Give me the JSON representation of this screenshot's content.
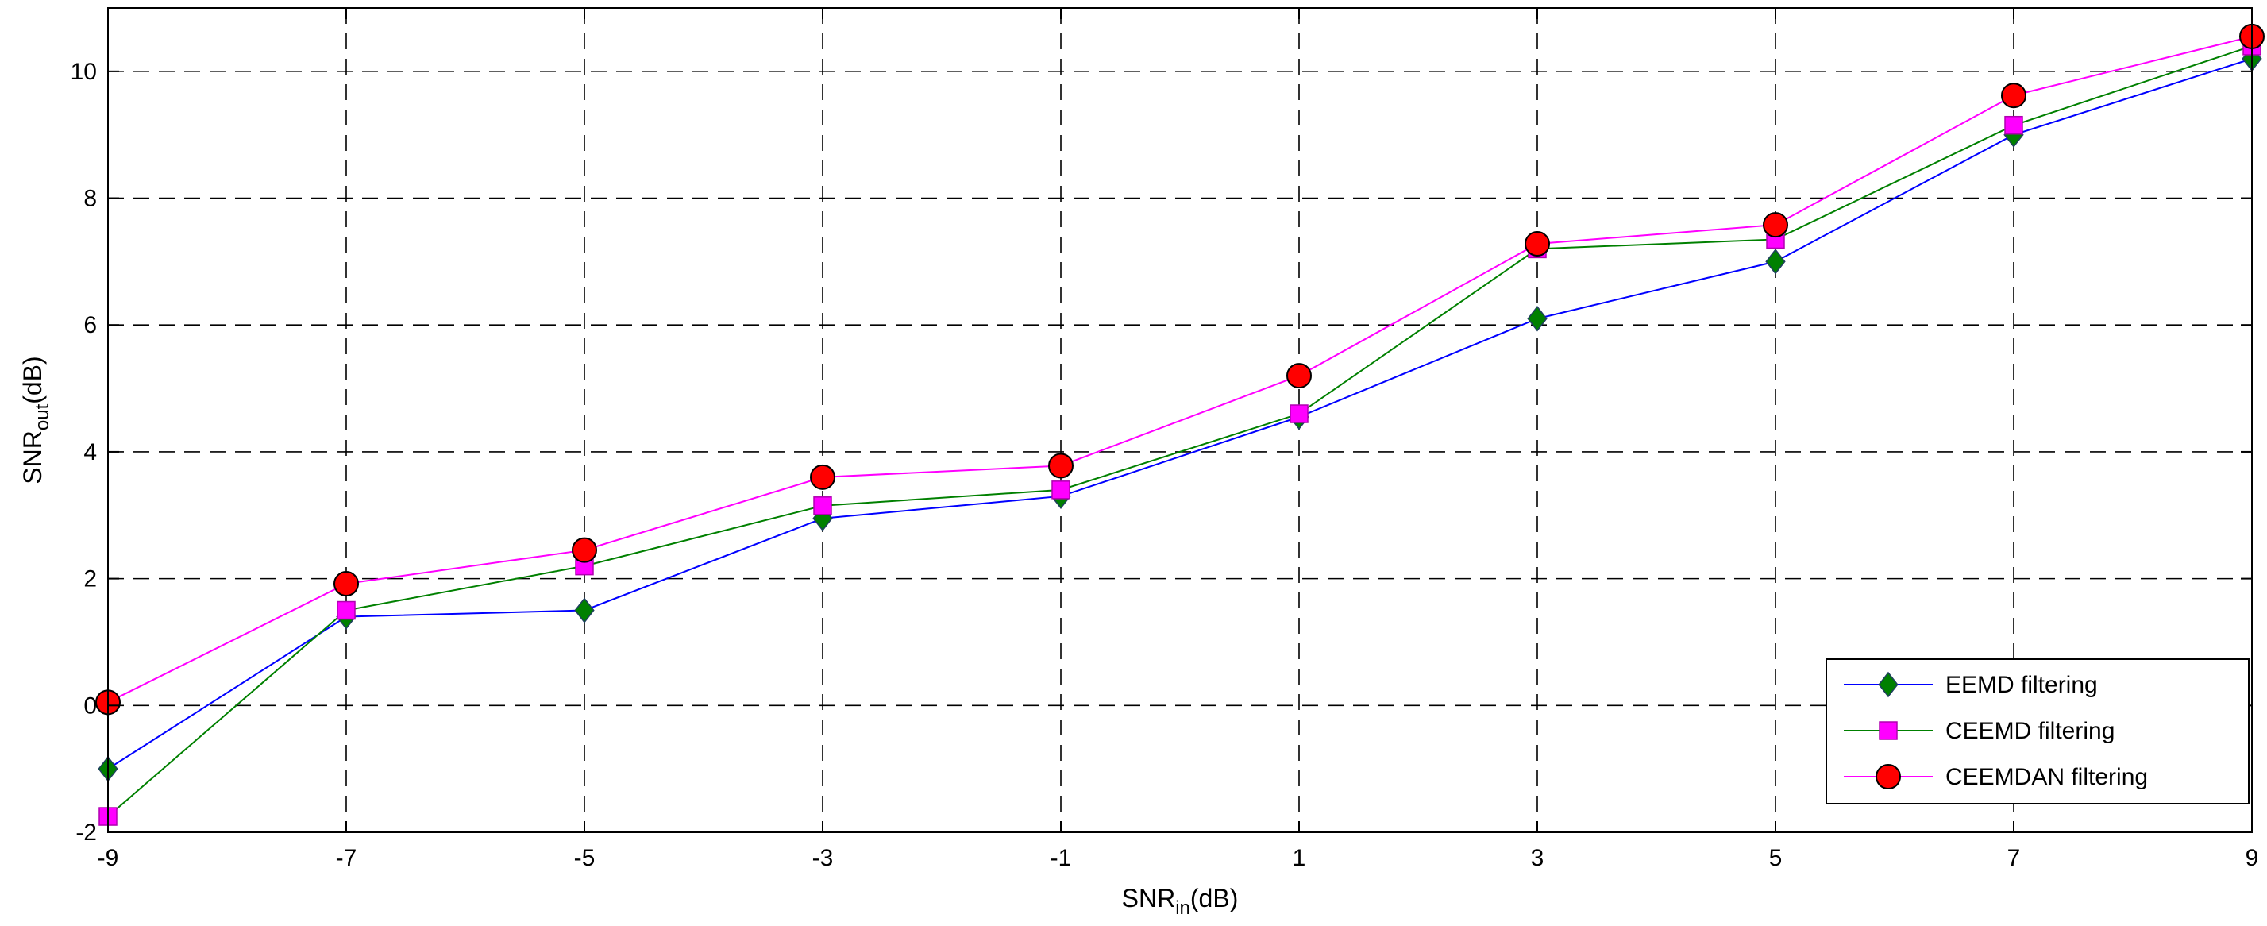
{
  "chart_data": {
    "type": "line",
    "x": [
      -9,
      -7,
      -5,
      -3,
      -1,
      1,
      3,
      5,
      7,
      9
    ],
    "xticks": [
      "-9",
      "-7",
      "-5",
      "-3",
      "-1",
      "1",
      "3",
      "5",
      "7",
      "9"
    ],
    "yticks": [
      "-2",
      "0",
      "2",
      "4",
      "6",
      "8",
      "10"
    ],
    "xlim": [
      -9,
      9
    ],
    "ylim": [
      -2,
      11
    ],
    "xlabel": {
      "main": "SNR",
      "sub": "in",
      "unit": "(dB)"
    },
    "ylabel": {
      "main": "SNR",
      "sub": "out",
      "unit": "(dB)"
    },
    "grid": true,
    "legend_position": "bottom-right",
    "series": [
      {
        "name": "EEMD filtering",
        "line_color": "#0000ff",
        "marker": "diamond",
        "marker_fill": "#008000",
        "values": [
          -1.0,
          1.4,
          1.5,
          2.95,
          3.3,
          4.55,
          6.1,
          7.0,
          9.0,
          10.2
        ]
      },
      {
        "name": "CEEMD filtering",
        "line_color": "#008000",
        "marker": "square",
        "marker_fill": "#ff00ff",
        "values": [
          -1.75,
          1.5,
          2.2,
          3.15,
          3.4,
          4.6,
          7.2,
          7.35,
          9.15,
          10.4
        ]
      },
      {
        "name": "CEEMDAN filtering",
        "line_color": "#ff00ff",
        "marker": "circle",
        "marker_fill": "#ff0000",
        "values": [
          0.05,
          1.92,
          2.45,
          3.6,
          3.78,
          5.2,
          7.28,
          7.58,
          9.62,
          10.55
        ]
      }
    ]
  }
}
